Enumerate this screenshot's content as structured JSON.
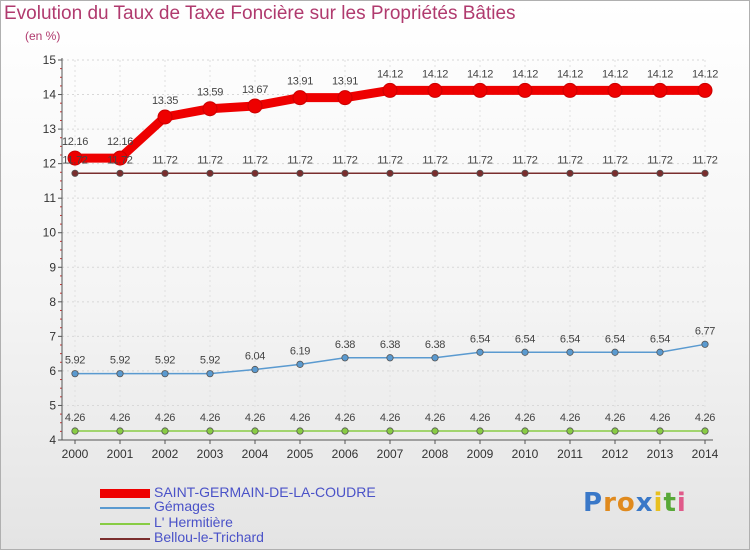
{
  "title": "Evolution du Taux de Taxe Foncière sur les Propriétés Bâties",
  "subtitle": "(en %)",
  "logo": {
    "text": "Proxiti",
    "letters": [
      "P",
      "r",
      "o",
      "x",
      "i",
      "t",
      "i"
    ],
    "colors": [
      "#3a78c8",
      "#e08a1e",
      "#e08a1e",
      "#3a78c8",
      "#e8c020",
      "#58a838",
      "#e05a8a"
    ]
  },
  "chart_data": {
    "type": "line",
    "title": "Evolution du Taux de Taxe Foncière sur les Propriétés Bâties",
    "ylabel": "(en %)",
    "xlabel": "",
    "ylim": [
      4,
      15
    ],
    "y_ticks": [
      "4",
      "5",
      "6",
      "7",
      "8",
      "9",
      "10",
      "11",
      "12",
      "13",
      "14",
      "15"
    ],
    "categories": [
      "2000",
      "2001",
      "2002",
      "2003",
      "2004",
      "2005",
      "2006",
      "2007",
      "2008",
      "2009",
      "2010",
      "2011",
      "2012",
      "2013",
      "2014"
    ],
    "series": [
      {
        "name": "SAINT-GERMAIN-DE-LA-COUDRE",
        "color": "#ee0000",
        "values": [
          12.16,
          12.16,
          13.35,
          13.59,
          13.67,
          13.91,
          13.91,
          14.12,
          14.12,
          14.12,
          14.12,
          14.12,
          14.12,
          14.12,
          14.12
        ],
        "labels": [
          "12.16",
          "12.16",
          "13.35",
          "13.59",
          "13.67",
          "13.91",
          "13.91",
          "14.12",
          "14.12",
          "14.12",
          "14.12",
          "14.12",
          "14.12",
          "14.12",
          "14.12"
        ]
      },
      {
        "name": "Gémages",
        "color": "#5a9ad0",
        "values": [
          5.92,
          5.92,
          5.92,
          5.92,
          6.04,
          6.19,
          6.38,
          6.38,
          6.38,
          6.54,
          6.54,
          6.54,
          6.54,
          6.54,
          6.77
        ],
        "labels": [
          "5.92",
          "5.92",
          "5.92",
          "5.92",
          "6.04",
          "6.19",
          "6.38",
          "6.38",
          "6.38",
          "6.54",
          "6.54",
          "6.54",
          "6.54",
          "6.54",
          "6.77"
        ]
      },
      {
        "name": "L' Hermitière",
        "color": "#88cc44",
        "values": [
          4.26,
          4.26,
          4.26,
          4.26,
          4.26,
          4.26,
          4.26,
          4.26,
          4.26,
          4.26,
          4.26,
          4.26,
          4.26,
          4.26,
          4.26
        ],
        "labels": [
          "4.26",
          "4.26",
          "4.26",
          "4.26",
          "4.26",
          "4.26",
          "4.26",
          "4.26",
          "4.26",
          "4.26",
          "4.26",
          "4.26",
          "4.26",
          "4.26",
          "4.26"
        ]
      },
      {
        "name": "Bellou-le-Trichard",
        "color": "#7a2e2e",
        "values": [
          11.72,
          11.72,
          11.72,
          11.72,
          11.72,
          11.72,
          11.72,
          11.72,
          11.72,
          11.72,
          11.72,
          11.72,
          11.72,
          11.72,
          11.72
        ],
        "labels": [
          "11.72",
          "11.72",
          "11.72",
          "11.72",
          "11.72",
          "11.72",
          "11.72",
          "11.72",
          "11.72",
          "11.72",
          "11.72",
          "11.72",
          "11.72",
          "11.72",
          "11.72"
        ]
      }
    ],
    "legend": [
      "SAINT-GERMAIN-DE-LA-COUDRE",
      "Gémages",
      "L' Hermitière",
      "Bellou-le-Trichard"
    ]
  }
}
